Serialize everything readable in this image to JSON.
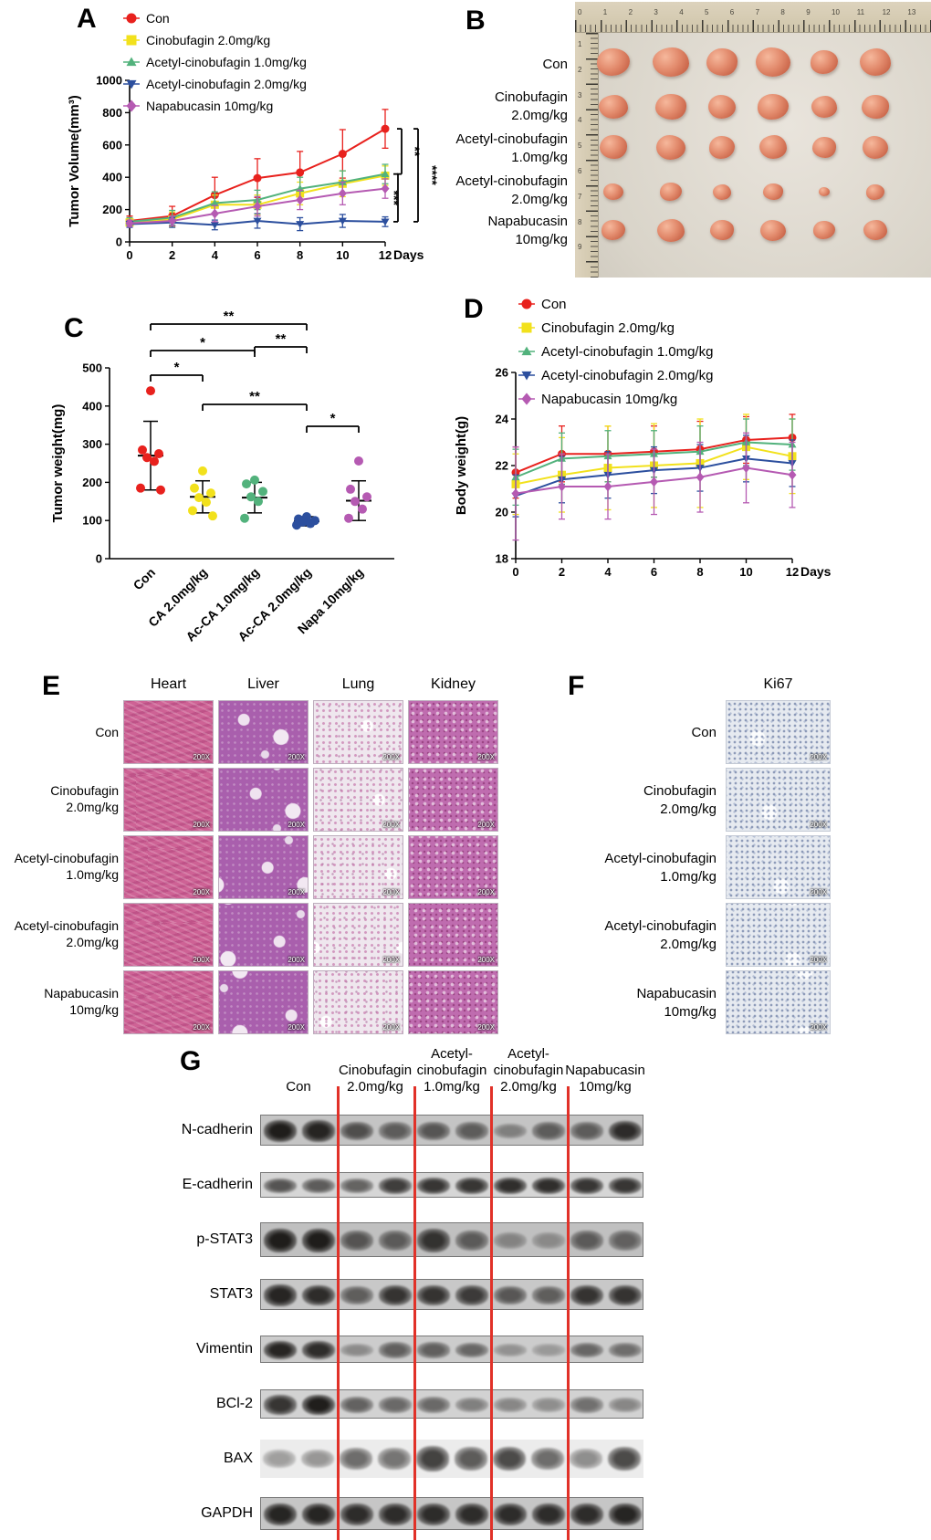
{
  "figure": {
    "magnification": "200X"
  },
  "groups": {
    "legend": [
      {
        "label": "Con",
        "color": "#e8211d",
        "marker": "circle"
      },
      {
        "label": "Cinobufagin 2.0mg/kg",
        "color": "#f2e11c",
        "marker": "square"
      },
      {
        "label": "Acetyl-cinobufagin 1.0mg/kg",
        "color": "#52b27c",
        "marker": "triangle-up"
      },
      {
        "label": "Acetyl-cinobufagin 2.0mg/kg",
        "color": "#2c4f9e",
        "marker": "triangle-down"
      },
      {
        "label": "Napabucasin 10mg/kg",
        "color": "#b55ab2",
        "marker": "diamond"
      }
    ]
  },
  "panelA": {
    "label": "A"
  },
  "panelB": {
    "label": "B",
    "rows": [
      {
        "lines": [
          "Con"
        ],
        "sizes": [
          [
            36,
            30
          ],
          [
            40,
            32
          ],
          [
            34,
            30
          ],
          [
            38,
            32
          ],
          [
            30,
            26
          ],
          [
            34,
            30
          ]
        ]
      },
      {
        "lines": [
          "Cinobufagin",
          "2.0mg/kg"
        ],
        "sizes": [
          [
            32,
            26
          ],
          [
            34,
            28
          ],
          [
            30,
            26
          ],
          [
            34,
            28
          ],
          [
            28,
            24
          ],
          [
            30,
            26
          ]
        ]
      },
      {
        "lines": [
          "Acetyl-cinobufagin",
          "1.0mg/kg"
        ],
        "sizes": [
          [
            30,
            26
          ],
          [
            32,
            27
          ],
          [
            28,
            25
          ],
          [
            30,
            26
          ],
          [
            26,
            23
          ],
          [
            28,
            25
          ]
        ]
      },
      {
        "lines": [
          "Acetyl-cinobufagin",
          "2.0mg/kg"
        ],
        "sizes": [
          [
            22,
            18
          ],
          [
            24,
            20
          ],
          [
            20,
            17
          ],
          [
            22,
            18
          ],
          [
            12,
            10
          ],
          [
            20,
            17
          ]
        ]
      },
      {
        "lines": [
          "Napabucasin",
          "10mg/kg"
        ],
        "sizes": [
          [
            26,
            22
          ],
          [
            30,
            25
          ],
          [
            26,
            22
          ],
          [
            28,
            23
          ],
          [
            24,
            20
          ],
          [
            26,
            22
          ]
        ]
      }
    ],
    "ruler_numbers": [
      "0",
      "1",
      "2",
      "3",
      "4",
      "5",
      "6",
      "7",
      "8",
      "9",
      "10",
      "11",
      "12",
      "13"
    ],
    "ruler_numbers_left": [
      "1",
      "2",
      "3",
      "4",
      "5",
      "6",
      "7",
      "8",
      "9"
    ]
  },
  "panelC": {
    "label": "C"
  },
  "panelD": {
    "label": "D"
  },
  "panelE": {
    "label": "E",
    "organs": [
      "Heart",
      "Liver",
      "Lung",
      "Kidney"
    ],
    "rows": [
      [
        "Con"
      ],
      [
        "Cinobufagin",
        "2.0mg/kg"
      ],
      [
        "Acetyl-cinobufagin",
        "1.0mg/kg"
      ],
      [
        "Acetyl-cinobufagin",
        "2.0mg/kg"
      ],
      [
        "Napabucasin",
        "10mg/kg"
      ]
    ]
  },
  "panelF": {
    "label": "F",
    "header": "Ki67",
    "rows": [
      [
        "Con"
      ],
      [
        "Cinobufagin",
        "2.0mg/kg"
      ],
      [
        "Acetyl-cinobufagin",
        "1.0mg/kg"
      ],
      [
        "Acetyl-cinobufagin",
        "2.0mg/kg"
      ],
      [
        "Napabucasin",
        "10mg/kg"
      ]
    ]
  },
  "panelG": {
    "label": "G",
    "col_headers": [
      [
        "Con"
      ],
      [
        "Cinobufagin",
        "2.0mg/kg"
      ],
      [
        "Acetyl-",
        "cinobufagin",
        "1.0mg/kg"
      ],
      [
        "Acetyl-",
        "cinobufagin",
        "2.0mg/kg"
      ],
      [
        "Napabucasin",
        "10mg/kg"
      ]
    ],
    "separator_color": "#e13128",
    "blots": [
      {
        "label": "N-cadherin",
        "h": 34,
        "bg": "#c4c4c4",
        "bands": [
          0.95,
          0.9,
          0.6,
          0.5,
          0.55,
          0.5,
          0.25,
          0.5,
          0.5,
          0.85
        ]
      },
      {
        "label": "E-cadherin",
        "h": 28,
        "bg": "#d6d6d6",
        "bands": [
          0.6,
          0.55,
          0.5,
          0.75,
          0.8,
          0.8,
          0.85,
          0.85,
          0.8,
          0.8
        ]
      },
      {
        "label": "p-STAT3",
        "h": 38,
        "bg": "#c0c0c0",
        "bands": [
          0.95,
          0.95,
          0.55,
          0.5,
          0.8,
          0.5,
          0.2,
          0.15,
          0.5,
          0.45
        ]
      },
      {
        "label": "STAT3",
        "h": 34,
        "bg": "#c8c8c8",
        "bands": [
          0.9,
          0.85,
          0.5,
          0.8,
          0.8,
          0.75,
          0.55,
          0.5,
          0.8,
          0.8
        ]
      },
      {
        "label": "Vimentin",
        "h": 30,
        "bg": "#cccccc",
        "bands": [
          0.9,
          0.85,
          0.2,
          0.5,
          0.5,
          0.45,
          0.15,
          0.1,
          0.45,
          0.4
        ]
      },
      {
        "label": "BCl-2",
        "h": 32,
        "bg": "#d2d2d2",
        "bands": [
          0.8,
          0.95,
          0.5,
          0.45,
          0.45,
          0.3,
          0.25,
          0.2,
          0.4,
          0.25
        ]
      },
      {
        "label": "BAX",
        "h": 42,
        "bg": "#ececec",
        "border": false,
        "bands": [
          0.2,
          0.25,
          0.5,
          0.45,
          0.75,
          0.6,
          0.7,
          0.5,
          0.3,
          0.7
        ]
      },
      {
        "label": "GAPDH",
        "h": 36,
        "bg": "#c6c6c6",
        "bands": [
          0.9,
          0.9,
          0.85,
          0.85,
          0.85,
          0.85,
          0.85,
          0.85,
          0.85,
          0.9
        ]
      }
    ]
  },
  "chart_data": [
    {
      "id": "A",
      "type": "line",
      "xlabel": "Days",
      "ylabel": "Tumor Volume(mm³)",
      "x": [
        0,
        2,
        4,
        6,
        8,
        10,
        12
      ],
      "ylim": [
        0,
        1000
      ],
      "yticks": [
        0,
        200,
        400,
        600,
        800,
        1000
      ],
      "series": [
        {
          "name": "Con",
          "color": "#e8211d",
          "marker": "circle",
          "values": [
            130,
            160,
            290,
            395,
            430,
            545,
            700
          ],
          "errors": [
            30,
            60,
            110,
            120,
            130,
            150,
            120
          ]
        },
        {
          "name": "Cinobufagin 2.0mg/kg",
          "color": "#f2e11c",
          "marker": "square",
          "values": [
            120,
            140,
            230,
            230,
            300,
            360,
            410
          ],
          "errors": [
            25,
            45,
            60,
            60,
            70,
            80,
            60
          ]
        },
        {
          "name": "Acetyl-cinobufagin 1.0mg/kg",
          "color": "#52b27c",
          "marker": "triangle-up",
          "values": [
            125,
            150,
            240,
            260,
            330,
            370,
            420
          ],
          "errors": [
            25,
            45,
            70,
            60,
            70,
            70,
            60
          ]
        },
        {
          "name": "Acetyl-cinobufagin 2.0mg/kg",
          "color": "#2c4f9e",
          "marker": "triangle-down",
          "values": [
            110,
            120,
            105,
            130,
            110,
            130,
            125
          ],
          "errors": [
            20,
            30,
            30,
            45,
            40,
            40,
            30
          ]
        },
        {
          "name": "Napabucasin 10mg/kg",
          "color": "#b55ab2",
          "marker": "diamond",
          "values": [
            115,
            130,
            175,
            220,
            260,
            300,
            330
          ],
          "errors": [
            20,
            30,
            50,
            60,
            60,
            70,
            60
          ]
        }
      ],
      "brackets": [
        {
          "x": 380,
          "v1": 700,
          "v2": 420,
          "label": "**",
          "labelX": 390
        },
        {
          "x": 376,
          "v1": 420,
          "v2": 125,
          "label": "***",
          "labelX": 367
        },
        {
          "x": 398,
          "v1": 700,
          "v2": 125,
          "label": "****",
          "labelX": 409
        }
      ]
    },
    {
      "id": "C",
      "type": "scatter",
      "ylabel": "Tumor weight(mg)",
      "categories": [
        "Con",
        "CA 2.0mg/kg",
        "Ac-CA 1.0mg/kg",
        "Ac-CA 2.0mg/kg",
        "Napa 10mg/kg"
      ],
      "ylim": [
        0,
        500
      ],
      "yticks": [
        0,
        100,
        200,
        300,
        400,
        500
      ],
      "colors": [
        "#e8211d",
        "#f2e11c",
        "#52b27c",
        "#2c4f9e",
        "#b55ab2"
      ],
      "points": [
        [
          440,
          285,
          275,
          265,
          255,
          185,
          180
        ],
        [
          230,
          185,
          172,
          160,
          148,
          126,
          112
        ],
        [
          206,
          196,
          176,
          162,
          150,
          106
        ],
        [
          110,
          104,
          100,
          96,
          92,
          88
        ],
        [
          256,
          182,
          162,
          150,
          130,
          106
        ]
      ],
      "means": [
        270,
        162,
        160,
        98,
        152
      ],
      "sds": [
        90,
        42,
        40,
        12,
        52
      ],
      "brackets": [
        {
          "from": 0,
          "to": 3,
          "label": "**",
          "y": 20
        },
        {
          "from": 2,
          "to": 3,
          "label": "**",
          "y": 45
        },
        {
          "from": 0,
          "to": 2,
          "label": "*",
          "y": 49
        },
        {
          "from": 0,
          "to": 1,
          "label": "*",
          "y": 76
        },
        {
          "from": 1,
          "to": 3,
          "label": "**",
          "y": 108
        },
        {
          "from": 3,
          "to": 4,
          "label": "*",
          "y": 132
        }
      ]
    },
    {
      "id": "D",
      "type": "line",
      "xlabel": "Days",
      "ylabel": "Body weight(g)",
      "x": [
        0,
        2,
        4,
        6,
        8,
        10,
        12
      ],
      "ylim": [
        18,
        26
      ],
      "yticks": [
        18,
        20,
        22,
        24,
        26
      ],
      "series": [
        {
          "name": "Con",
          "color": "#e8211d",
          "marker": "circle",
          "values": [
            21.7,
            22.5,
            22.5,
            22.6,
            22.7,
            23.1,
            23.2
          ],
          "errors": [
            1.1,
            1.2,
            1.2,
            1.1,
            1.2,
            1.0,
            1.0
          ]
        },
        {
          "name": "Cinobufagin 2.0mg/kg",
          "color": "#f2e11c",
          "marker": "square",
          "values": [
            21.2,
            21.6,
            21.9,
            22.0,
            22.1,
            22.8,
            22.4
          ],
          "errors": [
            1.3,
            1.6,
            1.8,
            1.8,
            1.9,
            1.4,
            1.6
          ]
        },
        {
          "name": "Acetyl-cinobufagin 1.0mg/kg",
          "color": "#52b27c",
          "marker": "triangle-up",
          "values": [
            21.5,
            22.3,
            22.4,
            22.5,
            22.6,
            23.0,
            22.9
          ],
          "errors": [
            1.2,
            1.1,
            1.1,
            1.0,
            1.1,
            1.0,
            1.1
          ]
        },
        {
          "name": "Acetyl-cinobufagin 2.0mg/kg",
          "color": "#2c4f9e",
          "marker": "triangle-down",
          "values": [
            20.7,
            21.4,
            21.6,
            21.8,
            21.9,
            22.3,
            22.1
          ],
          "errors": [
            0.9,
            1.0,
            1.0,
            1.0,
            1.0,
            1.0,
            1.0
          ]
        },
        {
          "name": "Napabucasin 10mg/kg",
          "color": "#b55ab2",
          "marker": "diamond",
          "values": [
            20.8,
            21.1,
            21.1,
            21.3,
            21.5,
            21.9,
            21.6
          ],
          "errors": [
            2.0,
            1.4,
            1.4,
            1.4,
            1.5,
            1.5,
            1.4
          ]
        }
      ]
    }
  ]
}
